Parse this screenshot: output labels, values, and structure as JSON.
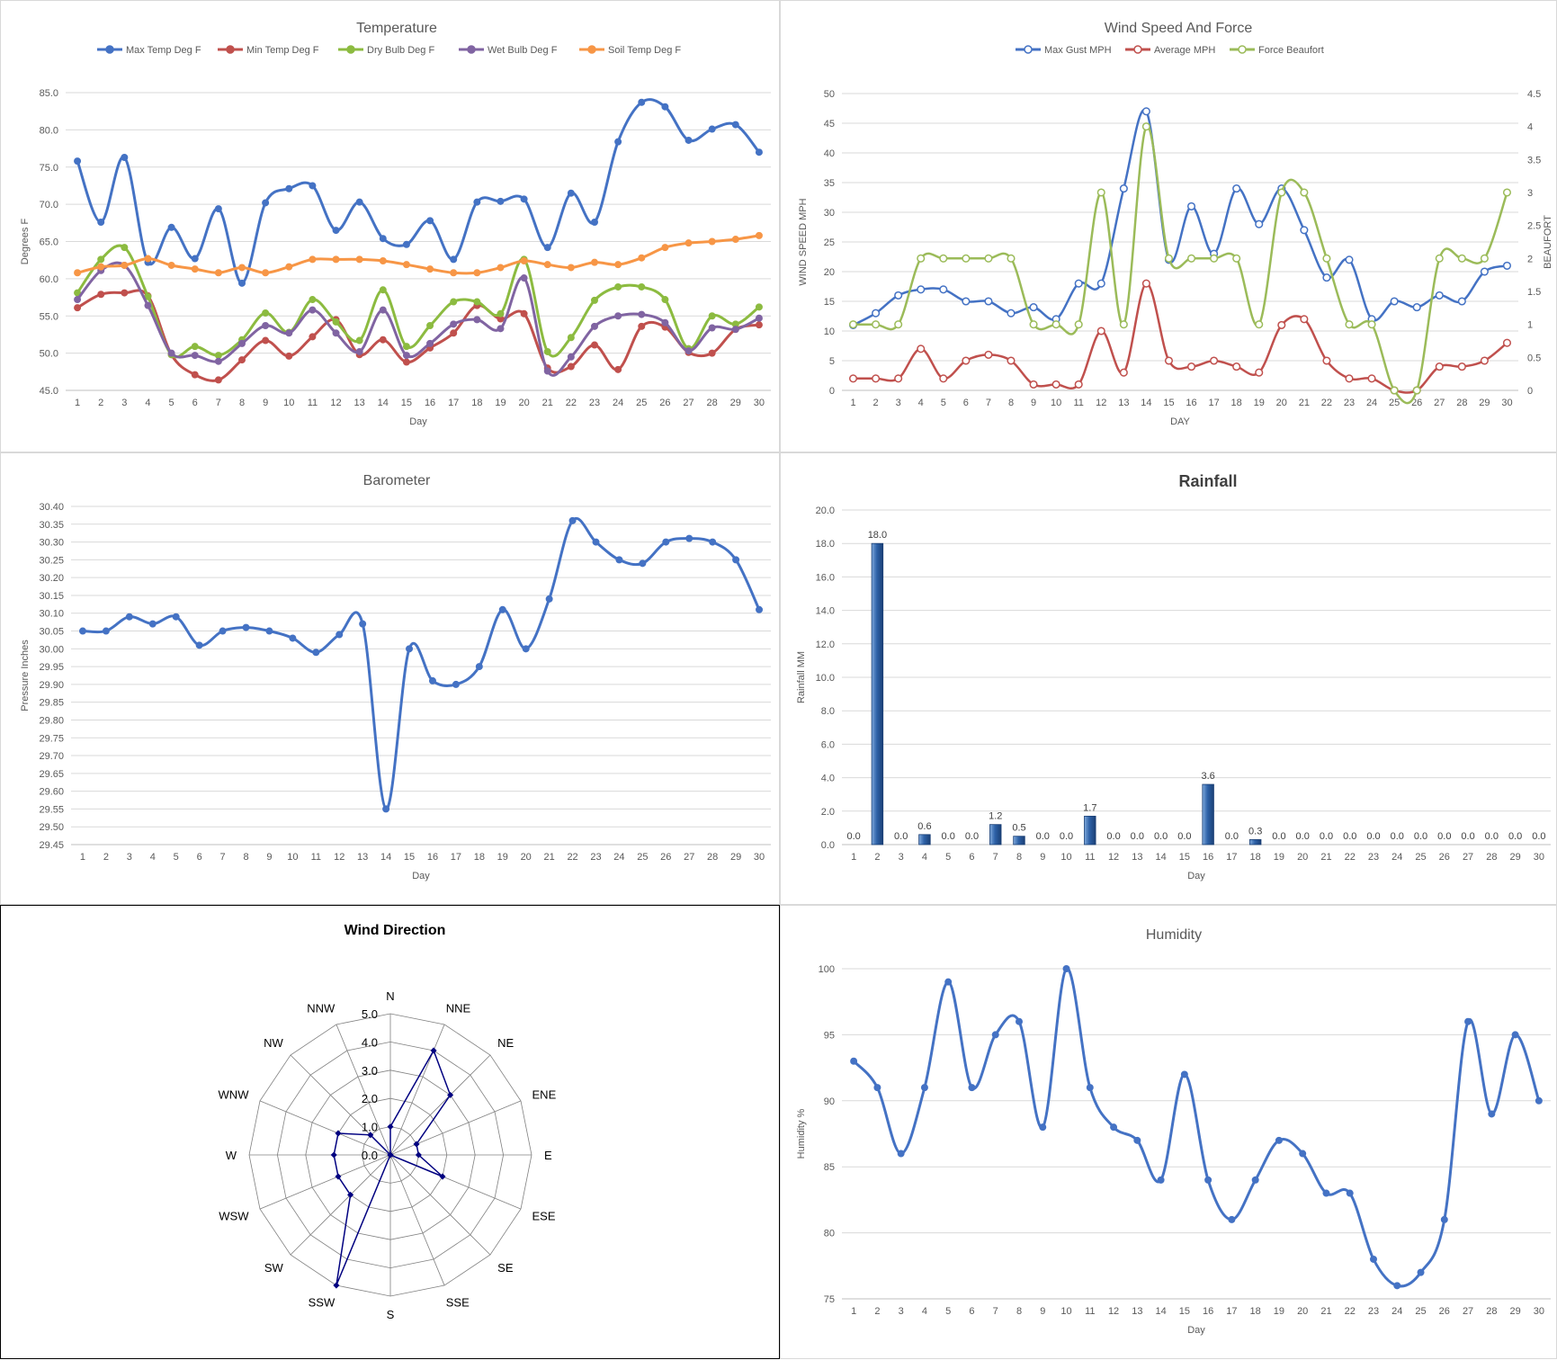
{
  "chart_data": [
    {
      "id": "temp",
      "type": "line",
      "title": "Temperature",
      "xlabel": "Day",
      "ylabel": "Degrees F",
      "categories": [
        "1",
        "2",
        "3",
        "4",
        "5",
        "6",
        "7",
        "8",
        "9",
        "10",
        "11",
        "12",
        "13",
        "14",
        "15",
        "16",
        "17",
        "18",
        "19",
        "20",
        "21",
        "22",
        "23",
        "24",
        "25",
        "26",
        "27",
        "28",
        "29",
        "30"
      ],
      "ylim": [
        45,
        85
      ],
      "yticks": [
        "45.0",
        "50.0",
        "55.0",
        "60.0",
        "65.0",
        "70.0",
        "75.0",
        "80.0",
        "85.0"
      ],
      "grid": true,
      "legend": "top",
      "series": [
        {
          "name": "Max Temp Deg F",
          "color": "#4472c4",
          "values": [
            75.8,
            67.6,
            76.3,
            62.2,
            66.9,
            62.7,
            69.4,
            59.4,
            70.2,
            72.1,
            72.5,
            66.5,
            70.3,
            65.4,
            64.6,
            67.8,
            62.6,
            70.3,
            70.4,
            70.7,
            64.2,
            71.5,
            67.6,
            78.4,
            83.7,
            83.1,
            78.6,
            80.1,
            80.7,
            77.0
          ]
        },
        {
          "name": "Min Temp Deg F",
          "color": "#c0504d",
          "values": [
            56.1,
            57.9,
            58.1,
            57.7,
            49.8,
            47.1,
            46.4,
            49.1,
            51.7,
            49.6,
            52.2,
            54.5,
            49.8,
            51.8,
            48.8,
            50.7,
            52.7,
            56.4,
            54.6,
            55.3,
            48.0,
            48.2,
            51.1,
            47.8,
            53.6,
            53.5,
            50.1,
            50.0,
            53.2,
            53.8
          ]
        },
        {
          "name": "Dry Bulb Deg F",
          "color": "#8cbb40",
          "values": [
            58.1,
            62.6,
            64.2,
            57.6,
            49.8,
            50.9,
            49.7,
            51.8,
            55.4,
            52.8,
            57.2,
            54.2,
            51.7,
            58.5,
            50.9,
            53.7,
            56.9,
            56.9,
            55.3,
            62.6,
            50.2,
            52.1,
            57.1,
            58.9,
            58.9,
            57.2,
            50.6,
            55.0,
            53.9,
            56.2
          ]
        },
        {
          "name": "Wet Bulb Deg F",
          "color": "#8064a2",
          "values": [
            57.2,
            61.1,
            61.8,
            56.4,
            50.0,
            49.7,
            48.9,
            51.3,
            53.7,
            52.7,
            55.8,
            52.7,
            50.2,
            55.8,
            49.7,
            51.3,
            53.9,
            54.5,
            53.3,
            60.1,
            47.6,
            49.5,
            53.6,
            55.0,
            55.2,
            54.1,
            50.3,
            53.4,
            53.2,
            54.7
          ]
        },
        {
          "name": "Soil Temp Deg F",
          "color": "#f79646",
          "values": [
            60.8,
            61.6,
            61.8,
            62.7,
            61.8,
            61.3,
            60.8,
            61.5,
            60.8,
            61.6,
            62.6,
            62.6,
            62.6,
            62.4,
            61.9,
            61.3,
            60.8,
            60.8,
            61.5,
            62.4,
            61.9,
            61.5,
            62.2,
            61.9,
            62.8,
            64.2,
            64.8,
            65.0,
            65.3,
            65.8
          ]
        }
      ]
    },
    {
      "id": "wind",
      "type": "line",
      "title": "Wind Speed And Force",
      "xlabel": "DAY",
      "ylabel": "WIND SPEED MPH",
      "y2label": "BEAUFORT",
      "categories": [
        "1",
        "2",
        "3",
        "4",
        "5",
        "6",
        "7",
        "8",
        "9",
        "10",
        "11",
        "12",
        "13",
        "14",
        "15",
        "16",
        "17",
        "18",
        "19",
        "20",
        "21",
        "22",
        "23",
        "24",
        "25",
        "26",
        "27",
        "28",
        "29",
        "30"
      ],
      "ylim": [
        0,
        50
      ],
      "yticks": [
        "0",
        "5",
        "10",
        "15",
        "20",
        "25",
        "30",
        "35",
        "40",
        "45",
        "50"
      ],
      "y2lim": [
        0,
        4.5
      ],
      "y2ticks": [
        "0",
        "0.5",
        "1",
        "1.5",
        "2",
        "2.5",
        "3",
        "3.5",
        "4",
        "4.5"
      ],
      "grid": true,
      "legend": "top",
      "series": [
        {
          "name": "Max Gust MPH",
          "color": "#4472c4",
          "axis": "left",
          "values": [
            11,
            13,
            16,
            17,
            17,
            15,
            15,
            13,
            14,
            12,
            18,
            18,
            34,
            47,
            22,
            31,
            23,
            34,
            28,
            34,
            27,
            19,
            22,
            12,
            15,
            14,
            16,
            15,
            20,
            21
          ]
        },
        {
          "name": "Average MPH",
          "color": "#c0504d",
          "axis": "left",
          "values": [
            2,
            2,
            2,
            7,
            2,
            5,
            6,
            5,
            1,
            1,
            1,
            10,
            3,
            18,
            5,
            4,
            5,
            4,
            3,
            11,
            12,
            5,
            2,
            2,
            0,
            0,
            4,
            4,
            5,
            8
          ]
        },
        {
          "name": "Force Beaufort",
          "color": "#9bbb59",
          "axis": "right",
          "values": [
            1,
            1,
            1,
            2,
            2,
            2,
            2,
            2,
            1,
            1,
            1,
            3,
            1,
            4,
            2,
            2,
            2,
            2,
            1,
            3,
            3,
            2,
            1,
            1,
            0,
            0,
            2,
            2,
            2,
            3
          ]
        }
      ]
    },
    {
      "id": "baro",
      "type": "line",
      "title": "Barometer",
      "xlabel": "Day",
      "ylabel": "Pressure Inches",
      "categories": [
        "1",
        "2",
        "3",
        "4",
        "5",
        "6",
        "7",
        "8",
        "9",
        "10",
        "11",
        "12",
        "13",
        "14",
        "15",
        "16",
        "17",
        "18",
        "19",
        "20",
        "21",
        "22",
        "23",
        "24",
        "25",
        "26",
        "27",
        "28",
        "29",
        "30"
      ],
      "ylim": [
        29.45,
        30.4
      ],
      "yticks": [
        "29.45",
        "29.50",
        "29.55",
        "29.60",
        "29.65",
        "29.70",
        "29.75",
        "29.80",
        "29.85",
        "29.90",
        "29.95",
        "30.00",
        "30.05",
        "30.10",
        "30.15",
        "30.20",
        "30.25",
        "30.30",
        "30.35",
        "30.40"
      ],
      "grid": true,
      "series": [
        {
          "name": "",
          "color": "#4472c4",
          "values": [
            30.05,
            30.05,
            30.09,
            30.07,
            30.09,
            30.01,
            30.05,
            30.06,
            30.05,
            30.03,
            29.99,
            30.04,
            30.07,
            29.55,
            30.0,
            29.91,
            29.9,
            29.95,
            30.11,
            30.0,
            30.14,
            30.36,
            30.3,
            30.25,
            30.24,
            30.3,
            30.31,
            30.3,
            30.25,
            30.11
          ]
        }
      ]
    },
    {
      "id": "rain",
      "type": "bar",
      "title": "Rainfall",
      "xlabel": "Day",
      "ylabel": "Rainfall MM",
      "categories": [
        "1",
        "2",
        "3",
        "4",
        "5",
        "6",
        "7",
        "8",
        "9",
        "10",
        "11",
        "12",
        "13",
        "14",
        "15",
        "16",
        "17",
        "18",
        "19",
        "20",
        "21",
        "22",
        "23",
        "24",
        "25",
        "26",
        "27",
        "28",
        "29",
        "30"
      ],
      "values": [
        0.0,
        18.0,
        0.0,
        0.6,
        0.0,
        0.0,
        1.2,
        0.5,
        0.0,
        0.0,
        1.7,
        0.0,
        0.0,
        0.0,
        0.0,
        3.6,
        0.0,
        0.3,
        0.0,
        0.0,
        0.0,
        0.0,
        0.0,
        0.0,
        0.0,
        0.0,
        0.0,
        0.0,
        0.0,
        0.0
      ],
      "data_labels": [
        "0.0",
        "18.0",
        "0.0",
        "0.6",
        "0.0",
        "0.0",
        "1.2",
        "0.5",
        "0.0",
        "0.0",
        "1.7",
        "0.0",
        "0.0",
        "0.0",
        "0.0",
        "3.6",
        "0.0",
        "0.3",
        "0.0",
        "0.0",
        "0.0",
        "0.0",
        "0.0",
        "0.0",
        "0.0",
        "0.0",
        "0.0",
        "0.0",
        "0.0",
        "0.0"
      ],
      "ylim": [
        0,
        20
      ],
      "yticks": [
        "0.0",
        "2.0",
        "4.0",
        "6.0",
        "8.0",
        "10.0",
        "12.0",
        "14.0",
        "16.0",
        "18.0",
        "20.0"
      ],
      "grid": true,
      "color": "#2e62a8"
    },
    {
      "id": "dir",
      "type": "radar",
      "title": "Wind Direction",
      "categories": [
        "N",
        "NNE",
        "NE",
        "ENE",
        "E",
        "ESE",
        "SE",
        "SSE",
        "S",
        "SSW",
        "SW",
        "WSW",
        "W",
        "WNW",
        "NW",
        "NNW"
      ],
      "values": [
        1,
        4,
        3,
        1,
        1,
        2,
        0,
        0,
        0,
        5,
        2,
        2,
        2,
        2,
        1,
        0
      ],
      "rlim": [
        0,
        5
      ],
      "rticks": [
        "0.0",
        "1.0",
        "2.0",
        "3.0",
        "4.0",
        "5.0"
      ],
      "color": "#000080"
    },
    {
      "id": "hum",
      "type": "line",
      "title": "Humidity",
      "xlabel": "Day",
      "ylabel": "Humidity %",
      "categories": [
        "1",
        "2",
        "3",
        "4",
        "5",
        "6",
        "7",
        "8",
        "9",
        "10",
        "11",
        "12",
        "13",
        "14",
        "15",
        "16",
        "17",
        "18",
        "19",
        "20",
        "21",
        "22",
        "23",
        "24",
        "25",
        "26",
        "27",
        "28",
        "29",
        "30"
      ],
      "ylim": [
        75,
        100
      ],
      "yticks": [
        "75",
        "80",
        "85",
        "90",
        "95",
        "100"
      ],
      "grid": true,
      "series": [
        {
          "name": "",
          "color": "#4472c4",
          "values": [
            93,
            91,
            86,
            91,
            99,
            91,
            95,
            96,
            88,
            100,
            91,
            88,
            87,
            84,
            92,
            84,
            81,
            84,
            87,
            86,
            83,
            83,
            78,
            76,
            77,
            81,
            96,
            89,
            95,
            90
          ]
        }
      ]
    }
  ]
}
